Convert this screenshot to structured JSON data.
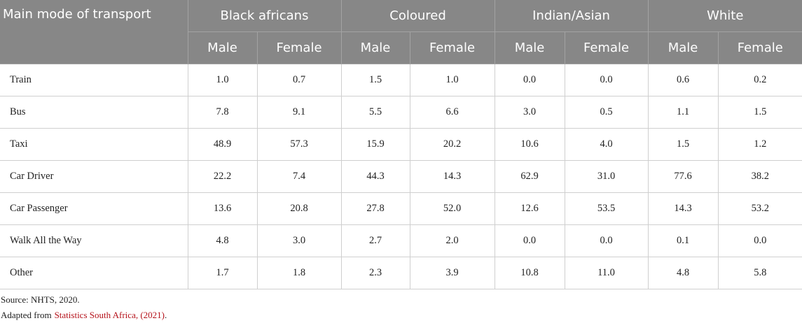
{
  "table": {
    "header": {
      "first": "Main mode of transport",
      "groups": [
        "Black africans",
        "Coloured",
        "Indian/Asian",
        "White"
      ],
      "subheaders": [
        "Male",
        "Female",
        "Male",
        "Female",
        "Male",
        "Female",
        "Male",
        "Female"
      ]
    },
    "rows": [
      [
        "Train",
        "1.0",
        "0.7",
        "1.5",
        "1.0",
        "0.0",
        "0.0",
        "0.6",
        "0.2"
      ],
      [
        "Bus",
        "7.8",
        "9.1",
        "5.5",
        "6.6",
        "3.0",
        "0.5",
        "1.1",
        "1.5"
      ],
      [
        "Taxi",
        "48.9",
        "57.3",
        "15.9",
        "20.2",
        "10.6",
        "4.0",
        "1.5",
        "1.2"
      ],
      [
        "Car Driver",
        "22.2",
        "7.4",
        "44.3",
        "14.3",
        "62.9",
        "31.0",
        "77.6",
        "38.2"
      ],
      [
        "Car Passenger",
        "13.6",
        "20.8",
        "27.8",
        "52.0",
        "12.6",
        "53.5",
        "14.3",
        "53.2"
      ],
      [
        "Walk All the Way",
        "4.8",
        "3.0",
        "2.7",
        "2.0",
        "0.0",
        "0.0",
        "0.1",
        "0.0"
      ],
      [
        "Other",
        "1.7",
        "1.8",
        "2.3",
        "3.9",
        "10.8",
        "11.0",
        "4.8",
        "5.8"
      ]
    ]
  },
  "notes": {
    "source": "Source: NHTS, 2020.",
    "adapted_prefix": "Adapted from",
    "adapted_link": "Statistics South Africa, (2021)",
    "adapted_suffix": "."
  }
}
